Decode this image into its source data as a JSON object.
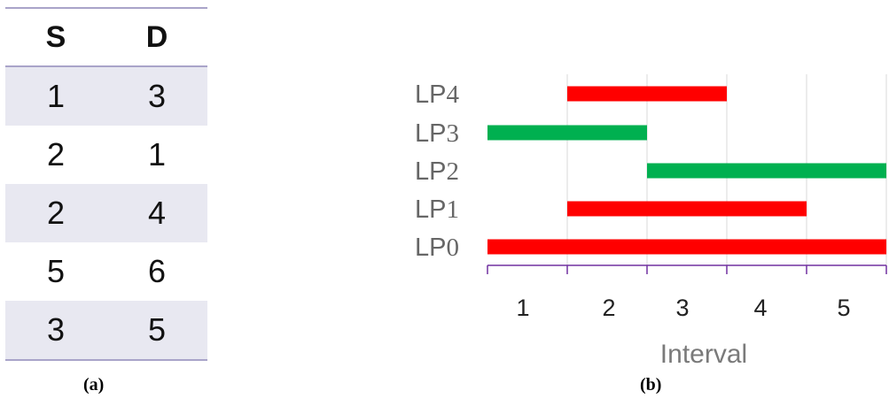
{
  "panel_a": {
    "headers": [
      "S",
      "D"
    ],
    "rows": [
      [
        "1",
        "3"
      ],
      [
        "2",
        "1"
      ],
      [
        "2",
        "4"
      ],
      [
        "5",
        "6"
      ],
      [
        "3",
        "5"
      ]
    ],
    "caption": "(a)"
  },
  "panel_b": {
    "caption": "(b)"
  },
  "chart_data": {
    "type": "bar",
    "orientation": "horizontal-range",
    "categories": [
      {
        "prefix": "LP",
        "sub": "4"
      },
      {
        "prefix": "LP",
        "sub": "3"
      },
      {
        "prefix": "LP",
        "sub": "2"
      },
      {
        "prefix": "LP",
        "sub": "1"
      },
      {
        "prefix": "LP",
        "sub": "0"
      }
    ],
    "bars": [
      {
        "start": 1,
        "end": 3,
        "color": "#ff0000"
      },
      {
        "start": 0,
        "end": 2,
        "color": "#00b050"
      },
      {
        "start": 2,
        "end": 5,
        "color": "#00b050"
      },
      {
        "start": 1,
        "end": 4,
        "color": "#ff0000"
      },
      {
        "start": 0,
        "end": 5,
        "color": "#ff0000"
      }
    ],
    "xticks": [
      "1",
      "2",
      "3",
      "4",
      "5"
    ],
    "xlabel": "Interval",
    "xlim": [
      0,
      5
    ],
    "grid": true,
    "axis_color": "#7030a0",
    "grid_color": "#d9d9d9"
  }
}
